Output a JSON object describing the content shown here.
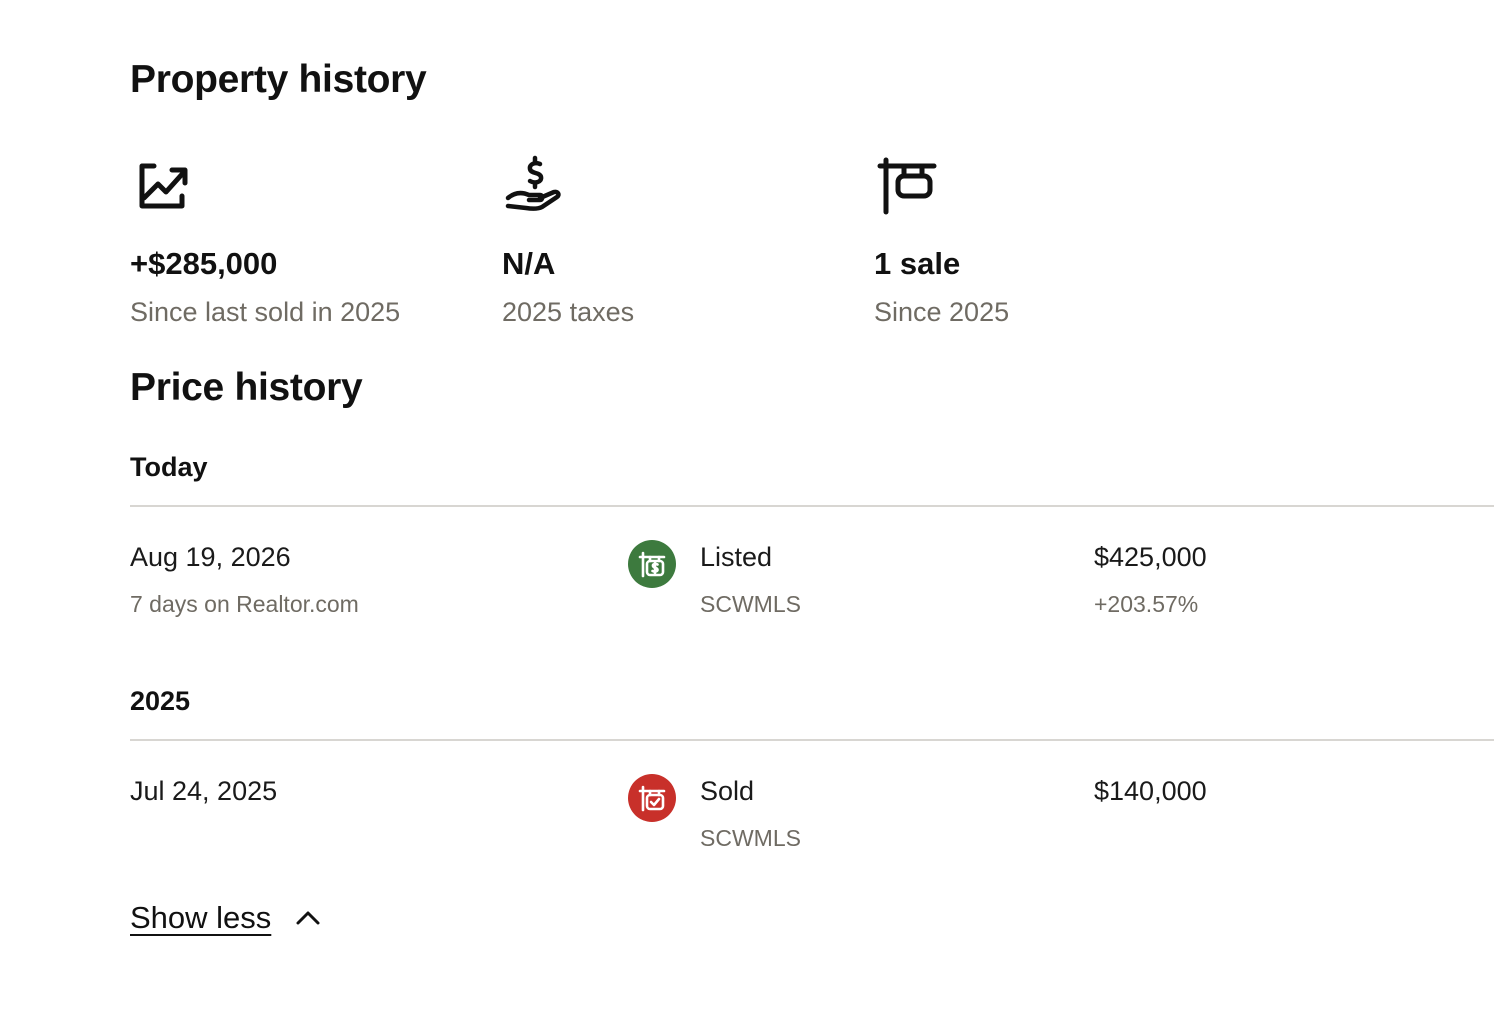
{
  "property_history": {
    "title": "Property history",
    "stats": [
      {
        "icon": "trending-up-chart-icon",
        "value": "+$285,000",
        "label": "Since last sold in 2025"
      },
      {
        "icon": "hand-holding-dollar-icon",
        "value": "N/A",
        "label": "2025 taxes"
      },
      {
        "icon": "for-sale-sign-icon",
        "value": "1 sale",
        "label": "Since 2025"
      }
    ]
  },
  "price_history": {
    "title": "Price history",
    "groups": [
      {
        "heading": "Today",
        "events": [
          {
            "date": "Aug 19, 2026",
            "sub": "7 days on Realtor.com",
            "event": "Listed",
            "source": "SCWMLS",
            "price": "$425,000",
            "change": "+203.57%",
            "icon": "listed-sign-icon",
            "badge_color": "#3d7a3e"
          }
        ]
      },
      {
        "heading": "2025",
        "events": [
          {
            "date": "Jul 24, 2025",
            "sub": "",
            "event": "Sold",
            "source": "SCWMLS",
            "price": "$140,000",
            "change": "",
            "icon": "sold-sign-icon",
            "badge_color": "#c8302a"
          }
        ]
      }
    ]
  },
  "show_less": {
    "label": "Show less",
    "icon": "chevron-up-icon"
  }
}
